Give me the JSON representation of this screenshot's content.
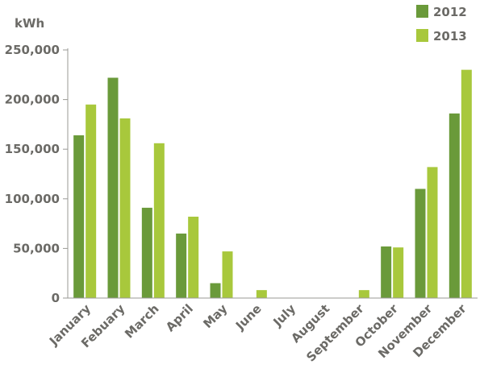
{
  "chart_data": {
    "type": "bar",
    "ylabel": "kWh",
    "ylim": [
      0,
      250000
    ],
    "yticks": [
      0,
      50000,
      100000,
      150000,
      200000,
      250000
    ],
    "ytick_labels": [
      "0",
      "50,000",
      "100,000",
      "150,000",
      "200,000",
      "250,000"
    ],
    "categories": [
      "January",
      "Febuary",
      "March",
      "April",
      "May",
      "June",
      "July",
      "August",
      "September",
      "October",
      "November",
      "December"
    ],
    "series": [
      {
        "name": "2012",
        "color": "#6a9a3a",
        "values": [
          164000,
          222000,
          91000,
          65000,
          15000,
          0,
          0,
          0,
          0,
          52000,
          110000,
          186000
        ]
      },
      {
        "name": "2013",
        "color": "#a8c83c",
        "values": [
          195000,
          181000,
          156000,
          82000,
          47000,
          8000,
          0,
          0,
          8000,
          51000,
          132000,
          230000
        ]
      }
    ],
    "legend_position": "top-right",
    "grid": false
  }
}
